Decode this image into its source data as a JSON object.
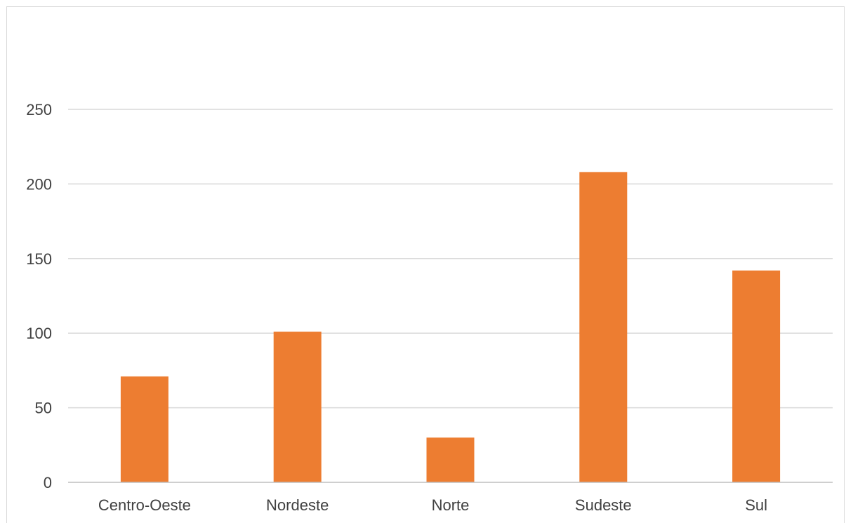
{
  "chart_data": {
    "type": "bar",
    "categories": [
      "Centro-Oeste",
      "Nordeste",
      "Norte",
      "Sudeste",
      "Sul"
    ],
    "series": [
      {
        "values": [
          71,
          101,
          30,
          208,
          142
        ],
        "color": "#ed7d31"
      }
    ],
    "ylim": [
      0,
      250
    ],
    "yticks": [
      0,
      50,
      100,
      150,
      200,
      250
    ],
    "grid": true,
    "legend": "none",
    "title": "",
    "xlabel": "",
    "ylabel": ""
  }
}
